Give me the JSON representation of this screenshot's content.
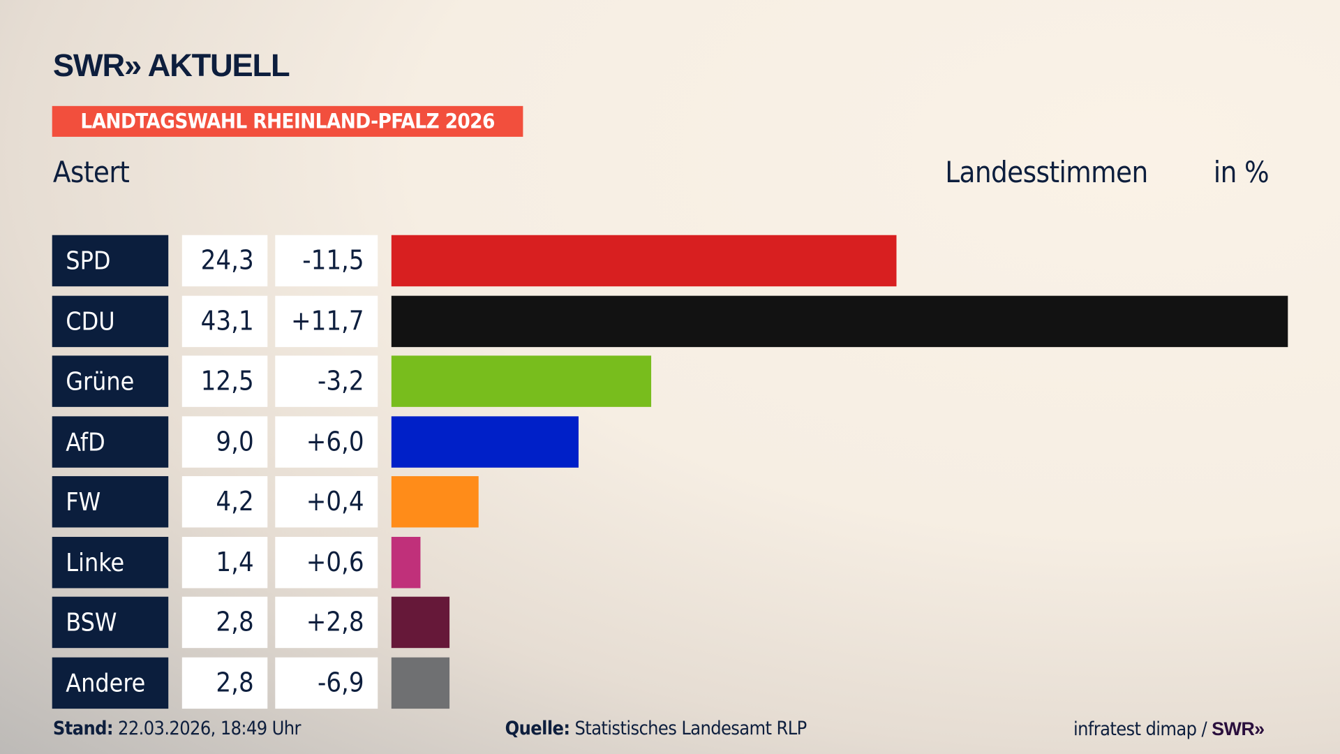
{
  "header": {
    "logo": "SWR» AKTUELL",
    "banner": "LANDTAGSWAHL RHEINLAND-PFALZ 2026",
    "region": "Astert",
    "measure": "Landesstimmen",
    "unit": "in %"
  },
  "chart_data": {
    "type": "bar",
    "orientation": "horizontal",
    "title": "Landesstimmen",
    "unit": "in %",
    "categories": [
      "SPD",
      "CDU",
      "Grüne",
      "AfD",
      "FW",
      "Linke",
      "BSW",
      "Andere"
    ],
    "values": [
      24.3,
      43.1,
      12.5,
      9.0,
      4.2,
      1.4,
      2.8,
      2.8
    ],
    "value_labels": [
      "24,3",
      "43,1",
      "12,5",
      "9,0",
      "4,2",
      "1,4",
      "2,8",
      "2,8"
    ],
    "changes": [
      -11.5,
      11.7,
      -3.2,
      6.0,
      0.4,
      0.6,
      2.8,
      -6.9
    ],
    "change_labels": [
      "-11,5",
      "+11,7",
      "-3,2",
      "+6,0",
      "+0,4",
      "+0,6",
      "+2,8",
      "-6,9"
    ],
    "colors": [
      "#d81f20",
      "#121212",
      "#78bd1d",
      "#0020c8",
      "#ff8c19",
      "#c0307a",
      "#661839",
      "#6f7072"
    ]
  },
  "footer": {
    "stand_label": "Stand:",
    "stand_value": "22.03.2026, 18:49 Uhr",
    "source_label": "Quelle:",
    "source_value": "Statistisches Landesamt RLP",
    "credit": "infratest dimap /",
    "credit_logo": "SWR»"
  }
}
